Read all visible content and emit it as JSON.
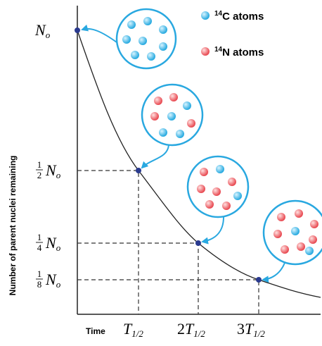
{
  "legend": [
    {
      "mass_number": "14",
      "text": "C atoms"
    },
    {
      "mass_number": "14",
      "text": "N atoms"
    }
  ],
  "axes": {
    "x_title": "Time",
    "y_title": "Number of parent nuclei remaining"
  },
  "y_labels": [
    {
      "symbol": "N",
      "subscript": "o"
    },
    {
      "numerator": "1",
      "denominator": "2",
      "symbol": "N",
      "subscript": "o"
    },
    {
      "numerator": "1",
      "denominator": "4",
      "symbol": "N",
      "subscript": "o"
    },
    {
      "numerator": "1",
      "denominator": "8",
      "symbol": "N",
      "subscript": "o"
    }
  ],
  "x_labels": [
    {
      "symbol": "T",
      "subscript": "1/2"
    },
    {
      "multiplier": "2",
      "symbol": "T",
      "subscript": "1/2"
    },
    {
      "multiplier": "3",
      "symbol": "T",
      "subscript": "1/2"
    }
  ]
}
